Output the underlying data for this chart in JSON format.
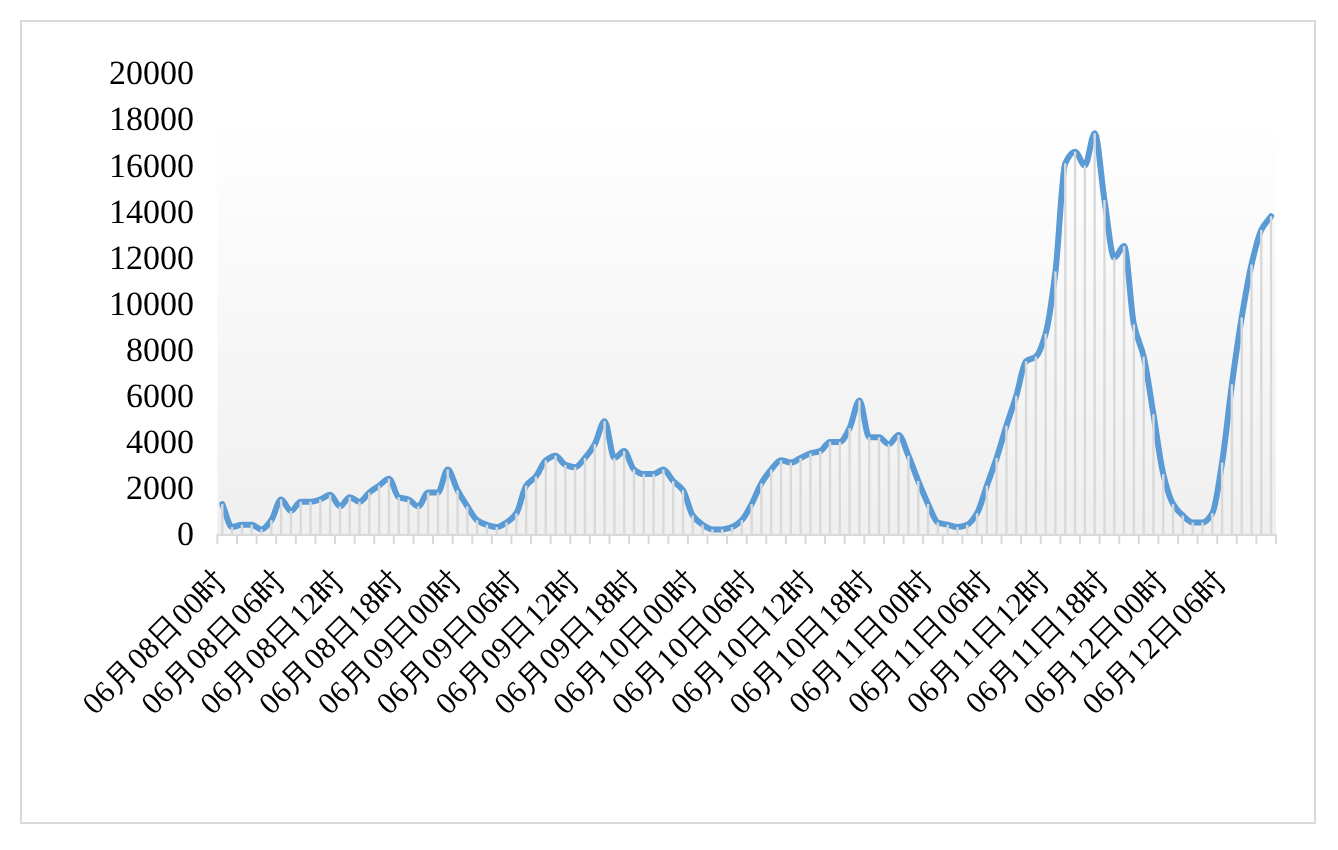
{
  "chart_data": {
    "type": "line",
    "categories": [
      "06月08日00时",
      null,
      null,
      null,
      null,
      null,
      "06月08日06时",
      null,
      null,
      null,
      null,
      null,
      "06月08日12时",
      null,
      null,
      null,
      null,
      null,
      "06月08日18时",
      null,
      null,
      null,
      null,
      null,
      "06月09日00时",
      null,
      null,
      null,
      null,
      null,
      "06月09日06时",
      null,
      null,
      null,
      null,
      null,
      "06月09日12时",
      null,
      null,
      null,
      null,
      null,
      "06月09日18时",
      null,
      null,
      null,
      null,
      null,
      "06月10日00时",
      null,
      null,
      null,
      null,
      null,
      "06月10日06时",
      null,
      null,
      null,
      null,
      null,
      "06月10日12时",
      null,
      null,
      null,
      null,
      null,
      "06月10日18时",
      null,
      null,
      null,
      null,
      null,
      "06月11日00时",
      null,
      null,
      null,
      null,
      null,
      "06月11日06时",
      null,
      null,
      null,
      null,
      null,
      "06月11日12时",
      null,
      null,
      null,
      null,
      null,
      "06月11日18时",
      null,
      null,
      null,
      null,
      null,
      "06月12日00时",
      null,
      null,
      null,
      null,
      null,
      "06月12日06时",
      null,
      null,
      null,
      null,
      null
    ],
    "series": [
      {
        "color": "#5b9bd5",
        "values": [
          1300,
          300,
          400,
          400,
          200,
          600,
          1500,
          1000,
          1400,
          1400,
          1500,
          1700,
          1200,
          1600,
          1400,
          1800,
          2100,
          2400,
          1600,
          1500,
          1200,
          1800,
          1800,
          2800,
          1900,
          1200,
          600,
          400,
          300,
          500,
          900,
          2100,
          2500,
          3200,
          3400,
          3000,
          2900,
          3300,
          3900,
          4900,
          3300,
          3600,
          2800,
          2600,
          2600,
          2800,
          2300,
          1900,
          800,
          400,
          200,
          200,
          300,
          600,
          1300,
          2200,
          2800,
          3200,
          3100,
          3300,
          3500,
          3600,
          4000,
          4000,
          4600,
          5800,
          4200,
          4200,
          3900,
          4300,
          3400,
          2300,
          1300,
          500,
          400,
          300,
          400,
          900,
          2100,
          3300,
          4700,
          6000,
          7500,
          7700,
          8700,
          11400,
          16100,
          16600,
          16000,
          17400,
          14500,
          12000,
          12500,
          9100,
          7700,
          5200,
          2600,
          1300,
          800,
          500,
          500,
          900,
          3100,
          6500,
          9400,
          11700,
          13200,
          13800
        ]
      },
      {
        "type": "bar",
        "color": "#d9d9d9",
        "values": [
          1300,
          300,
          400,
          400,
          200,
          600,
          1500,
          1000,
          1400,
          1400,
          1500,
          1700,
          1200,
          1600,
          1400,
          1800,
          2100,
          2400,
          1600,
          1500,
          1200,
          1800,
          1800,
          2800,
          1900,
          1200,
          600,
          400,
          300,
          500,
          900,
          2100,
          2500,
          3200,
          3400,
          3000,
          2900,
          3300,
          3900,
          4900,
          3300,
          3600,
          2800,
          2600,
          2600,
          2800,
          2300,
          1900,
          800,
          400,
          200,
          200,
          300,
          600,
          1300,
          2200,
          2800,
          3200,
          3100,
          3300,
          3500,
          3600,
          4000,
          4000,
          4600,
          5800,
          4200,
          4200,
          3900,
          4300,
          3400,
          2300,
          1300,
          500,
          400,
          300,
          400,
          900,
          2100,
          3300,
          4700,
          6000,
          7500,
          7700,
          8700,
          11400,
          16100,
          16600,
          16000,
          17400,
          14500,
          12000,
          12500,
          9100,
          7700,
          5200,
          2600,
          1300,
          800,
          500,
          500,
          900,
          3100,
          6500,
          9400,
          11700,
          13200,
          13800
        ]
      }
    ],
    "ylim": [
      0,
      20000
    ],
    "yticks": [
      0,
      2000,
      4000,
      6000,
      8000,
      10000,
      12000,
      14000,
      16000,
      18000,
      20000
    ],
    "grid": false,
    "marker": "none",
    "line_style": "solid"
  }
}
